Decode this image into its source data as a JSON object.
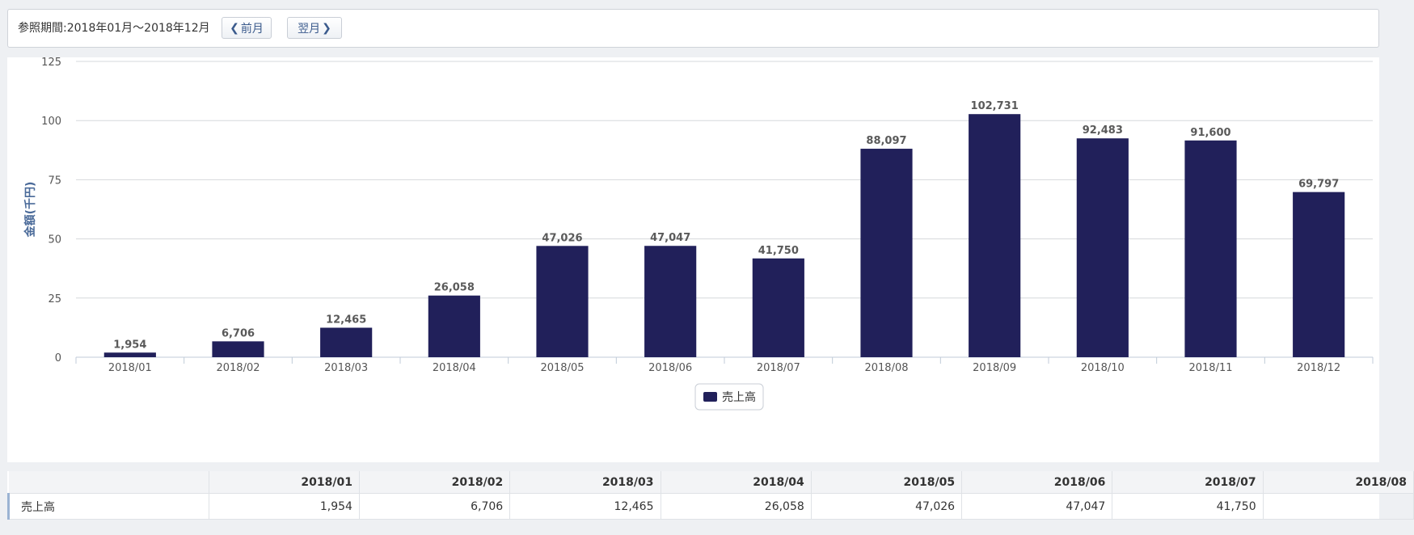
{
  "header": {
    "period_label": "参照期間:2018年01月～2018年12月",
    "prev_label": "前月",
    "next_label": "翌月"
  },
  "chart_data": {
    "type": "bar",
    "ylabel": "金額(千円)",
    "ylim": [
      0,
      125
    ],
    "yticks": [
      0,
      25,
      50,
      75,
      100,
      125
    ],
    "grid": true,
    "legend_position": "bottom-center",
    "categories": [
      "2018/01",
      "2018/02",
      "2018/03",
      "2018/04",
      "2018/05",
      "2018/06",
      "2018/07",
      "2018/08",
      "2018/09",
      "2018/10",
      "2018/11",
      "2018/12"
    ],
    "series": [
      {
        "name": "売上高",
        "color": "#21205a",
        "values": [
          1.954,
          6.706,
          12.465,
          26.058,
          47.026,
          47.047,
          41.75,
          88.097,
          102.731,
          92.483,
          91.6,
          69.797
        ],
        "data_labels": [
          "1,954",
          "6,706",
          "12,465",
          "26,058",
          "47,026",
          "47,047",
          "41,750",
          "88,097",
          "102,731",
          "92,483",
          "91,600",
          "69,797"
        ]
      }
    ]
  },
  "table": {
    "columns": [
      "2018/01",
      "2018/02",
      "2018/03",
      "2018/04",
      "2018/05",
      "2018/06",
      "2018/07",
      "2018/08"
    ],
    "rows": [
      {
        "label": "売上高",
        "cells": [
          "1,954",
          "6,706",
          "12,465",
          "26,058",
          "47,026",
          "47,047",
          "41,750",
          ""
        ]
      }
    ]
  }
}
